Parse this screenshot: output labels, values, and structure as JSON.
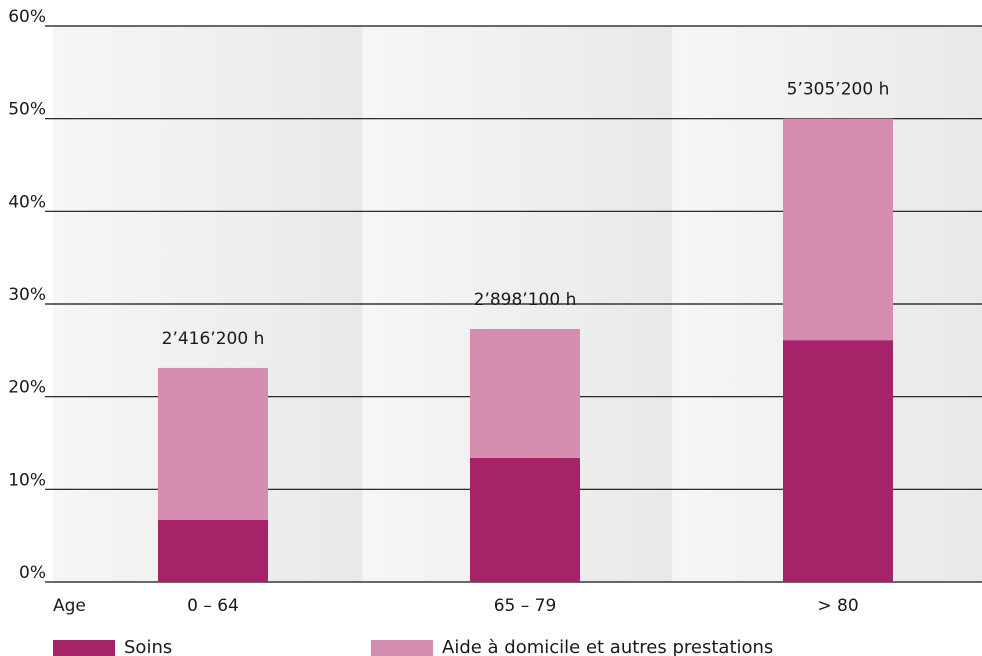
{
  "chart_data": {
    "type": "bar",
    "stacked": true,
    "x_axis_label": "Age",
    "categories": [
      "0 – 64",
      "65 – 79",
      "> 80"
    ],
    "series": [
      {
        "name": "Soins",
        "color": "#a6236a",
        "values": [
          6.7,
          13.4,
          26.1
        ]
      },
      {
        "name": "Aide à domicile et autres prestations",
        "color": "#d48dae",
        "values": [
          16.4,
          13.9,
          23.9
        ]
      }
    ],
    "data_labels": [
      "2’416’200 h",
      "2’898’100 h",
      "5’305’200 h"
    ],
    "y_ticks": [
      "0%",
      "10%",
      "20%",
      "30%",
      "40%",
      "50%",
      "60%"
    ],
    "ylim": [
      0,
      60
    ],
    "grid": true,
    "legend_position": "bottom"
  }
}
